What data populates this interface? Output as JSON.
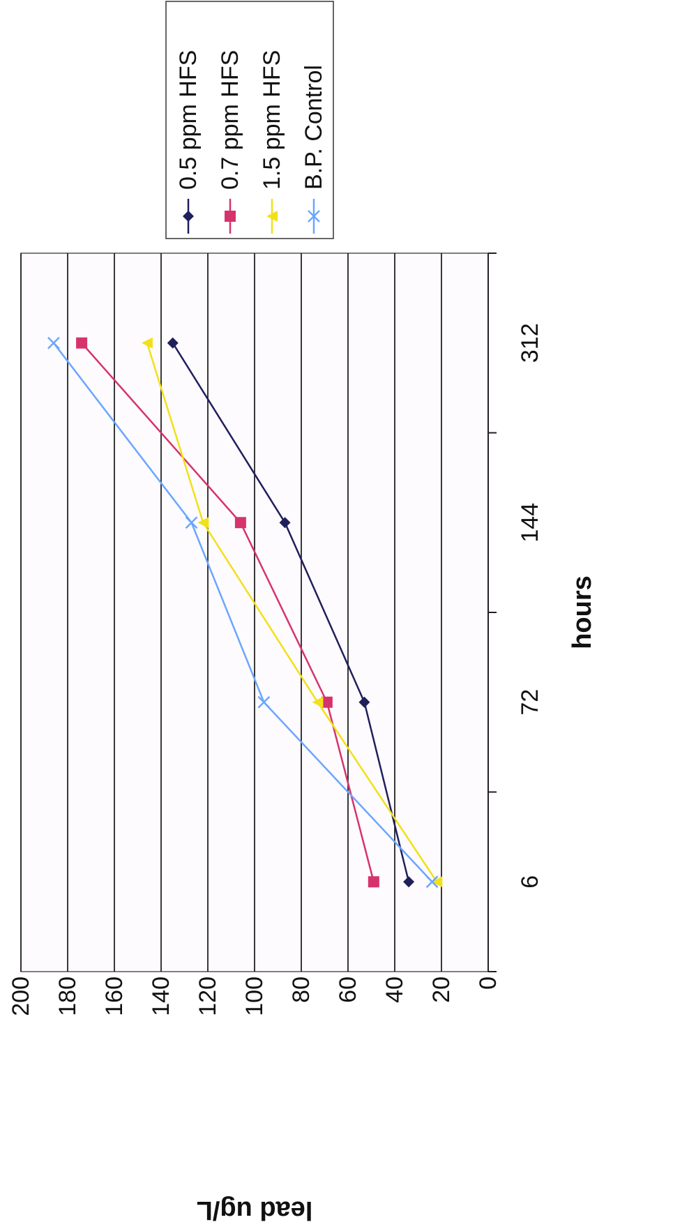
{
  "chart_data": {
    "type": "line",
    "title": "",
    "xlabel": "hours",
    "ylabel": "lead ug/L",
    "categories": [
      "6",
      "72",
      "144",
      "312"
    ],
    "ylim": [
      0,
      200
    ],
    "yticks": [
      0,
      20,
      40,
      60,
      80,
      100,
      120,
      140,
      160,
      180,
      200
    ],
    "grid": true,
    "legend_position": "right",
    "orientation": "rotated 90 degrees clockwise",
    "series": [
      {
        "name": "0.5 ppm HFS",
        "values": [
          34,
          53,
          87,
          135
        ],
        "color": "#1f1f5c",
        "marker": "diamond"
      },
      {
        "name": "0.7 ppm HFS",
        "values": [
          49,
          69,
          106,
          174
        ],
        "color": "#d6336c",
        "marker": "square"
      },
      {
        "name": "1.5 ppm HFS",
        "values": [
          22,
          73,
          122,
          146
        ],
        "color": "#f2e01a",
        "marker": "triangle"
      },
      {
        "name": "B.P. Control",
        "values": [
          24,
          96,
          127,
          186
        ],
        "color": "#6aa6ff",
        "marker": "x"
      }
    ]
  }
}
